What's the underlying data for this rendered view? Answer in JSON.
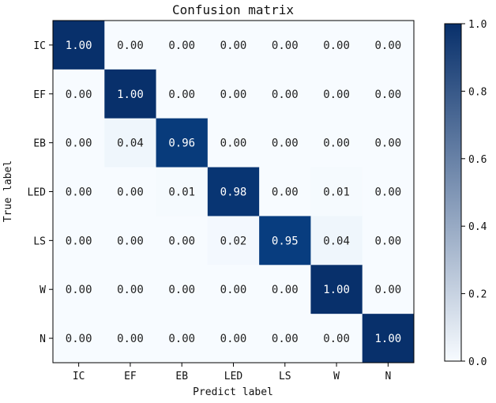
{
  "chart_data": {
    "type": "heatmap",
    "title": "Confusion matrix",
    "xlabel": "Predict label",
    "ylabel": "True label",
    "x_categories": [
      "IC",
      "EF",
      "EB",
      "LED",
      "LS",
      "W",
      "N"
    ],
    "y_categories": [
      "IC",
      "EF",
      "EB",
      "LED",
      "LS",
      "W",
      "N"
    ],
    "values": [
      [
        1.0,
        0.0,
        0.0,
        0.0,
        0.0,
        0.0,
        0.0
      ],
      [
        0.0,
        1.0,
        0.0,
        0.0,
        0.0,
        0.0,
        0.0
      ],
      [
        0.0,
        0.04,
        0.96,
        0.0,
        0.0,
        0.0,
        0.0
      ],
      [
        0.0,
        0.0,
        0.01,
        0.98,
        0.0,
        0.01,
        0.0
      ],
      [
        0.0,
        0.0,
        0.0,
        0.02,
        0.95,
        0.04,
        0.0
      ],
      [
        0.0,
        0.0,
        0.0,
        0.0,
        0.0,
        1.0,
        0.0
      ],
      [
        0.0,
        0.0,
        0.0,
        0.0,
        0.0,
        0.0,
        1.0
      ]
    ],
    "value_format_decimals": 2,
    "colormap": "Blues",
    "color_low": "#f7fbff",
    "color_high": "#08306b",
    "text_color_dark": "#222222",
    "text_color_light": "#ffffff",
    "colorbar": {
      "range": [
        0.0,
        1.0
      ],
      "ticks": [
        "0.0",
        "0.2",
        "0.4",
        "0.6",
        "0.8",
        "1.0"
      ]
    }
  }
}
